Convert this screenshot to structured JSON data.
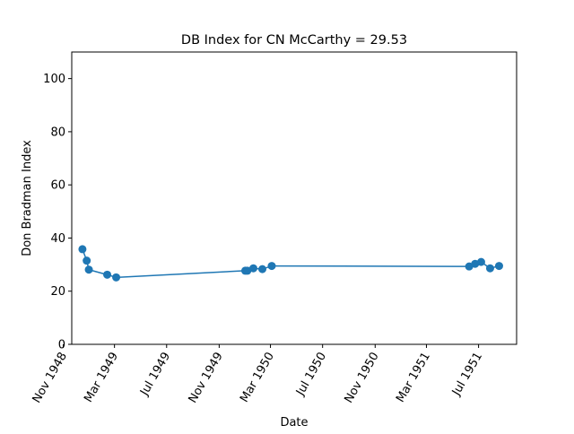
{
  "chart_data": {
    "type": "line",
    "title": "DB Index for CN McCarthy = 29.53",
    "xlabel": "Date",
    "ylabel": "Don Bradman Index",
    "ylim": [
      0,
      110
    ],
    "xlim": [
      "1948-11-21",
      "1951-09-28"
    ],
    "grid": false,
    "legend": "none",
    "x_ticks": [
      {
        "date": "1948-11-01",
        "label": "Nov 1948"
      },
      {
        "date": "1949-03-01",
        "label": "Mar 1949"
      },
      {
        "date": "1949-07-01",
        "label": "Jul 1949"
      },
      {
        "date": "1949-11-01",
        "label": "Nov 1949"
      },
      {
        "date": "1950-03-01",
        "label": "Mar 1950"
      },
      {
        "date": "1950-07-01",
        "label": "Jul 1950"
      },
      {
        "date": "1950-11-01",
        "label": "Nov 1950"
      },
      {
        "date": "1951-03-01",
        "label": "Mar 1951"
      },
      {
        "date": "1951-07-01",
        "label": "Jul 1951"
      }
    ],
    "y_ticks": [
      0,
      20,
      40,
      60,
      80,
      100
    ],
    "series": [
      {
        "color": "#1f77b4",
        "marker": "circle",
        "x": [
          "1948-12-16",
          "1948-12-26",
          "1948-12-31",
          "1949-02-12",
          "1949-03-05",
          "1950-01-01",
          "1950-01-06",
          "1950-01-20",
          "1950-02-10",
          "1950-03-04",
          "1951-06-09",
          "1951-06-23",
          "1951-07-07",
          "1951-07-28",
          "1951-08-18"
        ],
        "y": [
          35.8,
          31.5,
          28.1,
          26.2,
          25.2,
          27.7,
          27.7,
          28.6,
          28.3,
          29.5,
          29.3,
          30.3,
          31.0,
          28.6,
          29.5
        ]
      }
    ]
  }
}
